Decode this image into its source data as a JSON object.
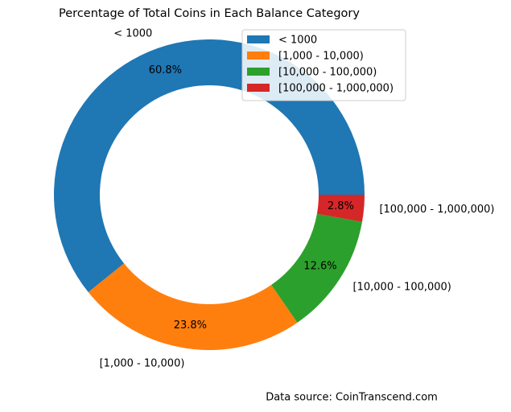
{
  "chart_data": {
    "type": "donut",
    "title": "Percentage of Total Coins in Each Balance Category",
    "categories": [
      "< 1000",
      "[1,000 - 10,000)",
      "[10,000 - 100,000)",
      "[100,000 - 1,000,000)"
    ],
    "values": [
      60.8,
      23.8,
      12.6,
      2.8
    ],
    "value_labels": [
      "60.8%",
      "23.8%",
      "12.6%",
      "2.8%"
    ],
    "colors": [
      "#1f77b4",
      "#ff7f0e",
      "#2ca02c",
      "#d62728"
    ],
    "legend": "upper right",
    "annotation": "Data source: CoinTranscend.com"
  }
}
